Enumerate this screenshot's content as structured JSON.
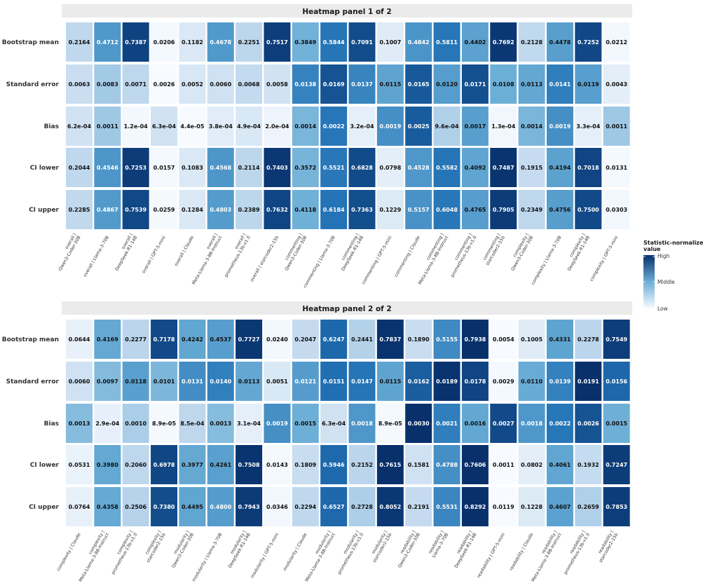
{
  "legend": {
    "title_line1": "Statistic-normalized",
    "title_line2": "value",
    "labels": [
      "High",
      "Middle",
      "Low"
    ],
    "colors": [
      "#08306b",
      "#6baed6",
      "#f7fbff"
    ]
  },
  "chart_data": [
    {
      "type": "heatmap",
      "title": "Heatmap panel 1 of 2",
      "rows": [
        "Bootstrap mean",
        "Standard error",
        "Bias",
        "CI lower",
        "CI upper"
      ],
      "columns": [
        "overall | Qwen3-Coder-30B",
        "overall | Llama-3-70B",
        "overall | DeepSeek-R1-14B",
        "overall | GPT-5-mini",
        "overall | Claude",
        "overall | Meta-Llama-3-8B-Instruct",
        "overall | prometheus-13b-v1.0",
        "overall | starcoder2-15b",
        "commenting | Qwen3-Coder-30B",
        "commenting | Llama-3-70B",
        "commenting | DeepSeek-R1-14B",
        "commenting | GPT-5-mini",
        "commenting | Claude",
        "commenting | Meta-Llama-3-8B-Instruct",
        "commenting | prometheus-13b-v1.0",
        "commenting | starcoder2-15b",
        "complexity | Qwen3-Coder-30B",
        "complexity | Llama-3-70B",
        "complexity | DeepSeek-R1-14B",
        "complexity | GPT-5-mini"
      ],
      "column_labels": [
        [
          "overall |",
          "Qwen3-Coder-30B"
        ],
        [
          "overall | Llama-3-70B"
        ],
        [
          "overall |",
          "DeepSeek-R1-14B"
        ],
        [
          "overall | GPT-5-mini"
        ],
        [
          "overall | Claude"
        ],
        [
          "overall |",
          "Meta-Llama-3-8B-Instruct"
        ],
        [
          "overall |",
          "prometheus-13b-v1.0"
        ],
        [
          "overall | starcoder2-15b"
        ],
        [
          "commenting |",
          "Qwen3-Coder-30B"
        ],
        [
          "commenting | Llama-3-70B"
        ],
        [
          "commenting |",
          "DeepSeek-R1-14B"
        ],
        [
          "commenting | GPT-5-mini"
        ],
        [
          "commenting | Claude"
        ],
        [
          "commenting |",
          "Meta-Llama-3-8B-Instruct"
        ],
        [
          "commenting |",
          "prometheus-13b-v1.0"
        ],
        [
          "commenting |",
          "starcoder2-15b"
        ],
        [
          "complexity |",
          "Qwen3-Coder-30B"
        ],
        [
          "complexity | Llama-3-70B"
        ],
        [
          "complexity |",
          "DeepSeek-R1-14B"
        ],
        [
          "complexity | GPT-5-mini"
        ]
      ],
      "values": [
        [
          "0.2164",
          "0.4712",
          "0.7387",
          "0.0206",
          "0.1182",
          "0.4678",
          "0.2251",
          "0.7517",
          "0.3849",
          "0.5844",
          "0.7091",
          "0.1007",
          "0.4842",
          "0.5811",
          "0.4402",
          "0.7692",
          "0.2128",
          "0.4478",
          "0.7252",
          "0.0212"
        ],
        [
          "0.0063",
          "0.0083",
          "0.0071",
          "0.0026",
          "0.0052",
          "0.0060",
          "0.0068",
          "0.0058",
          "0.0138",
          "0.0169",
          "0.0137",
          "0.0115",
          "0.0165",
          "0.0120",
          "0.0171",
          "0.0108",
          "0.0113",
          "0.0141",
          "0.0119",
          "0.0043"
        ],
        [
          "6.2e-04",
          "0.0011",
          "1.2e-04",
          "6.3e-04",
          "4.4e-05",
          "3.8e-04",
          "4.9e-04",
          "2.0e-04",
          "0.0014",
          "0.0022",
          "3.2e-04",
          "0.0019",
          "0.0025",
          "9.6e-04",
          "0.0017",
          "1.3e-04",
          "0.0014",
          "0.0019",
          "3.3e-04",
          "0.0011"
        ],
        [
          "0.2044",
          "0.4546",
          "0.7253",
          "0.0157",
          "0.1083",
          "0.4568",
          "0.2114",
          "0.7403",
          "0.3572",
          "0.5521",
          "0.6828",
          "0.0798",
          "0.4528",
          "0.5582",
          "0.4092",
          "0.7487",
          "0.1915",
          "0.4194",
          "0.7018",
          "0.0131"
        ],
        [
          "0.2285",
          "0.4867",
          "0.7539",
          "0.0259",
          "0.1284",
          "0.4803",
          "0.2389",
          "0.7632",
          "0.4118",
          "0.6184",
          "0.7363",
          "0.1229",
          "0.5157",
          "0.6048",
          "0.4765",
          "0.7905",
          "0.2349",
          "0.4756",
          "0.7500",
          "0.0303"
        ]
      ]
    },
    {
      "type": "heatmap",
      "title": "Heatmap panel 2 of 2",
      "rows": [
        "Bootstrap mean",
        "Standard error",
        "Bias",
        "CI lower",
        "CI upper"
      ],
      "columns": [
        "complexity | Claude",
        "complexity | Meta-Llama-3-8B-Instruct",
        "complexity | prometheus-13b-v1.0",
        "complexity | starcoder2-15b",
        "modularity | Qwen3-Coder-30B",
        "modularity | Llama-3-70B",
        "modularity | DeepSeek-R1-14B",
        "modularity | GPT-5-mini",
        "modularity | Claude",
        "modularity | Meta-Llama-3-8B-Instruct",
        "modularity | prometheus-13b-v1.0",
        "modularity | starcoder2-15b",
        "readability | Qwen3-Coder-30B",
        "readability | Llama-3-70B",
        "readability | DeepSeek-R1-14B",
        "readability | GPT-5-mini",
        "readability | Claude",
        "readability | Meta-Llama-3-8B-Instruct",
        "readability | prometheus-13b-v1.0",
        "readability | starcoder2-15b"
      ],
      "column_labels": [
        [
          "complexity | Claude"
        ],
        [
          "complexity |",
          "Meta-Llama-3-8B-Instruct"
        ],
        [
          "complexity |",
          "prometheus-13b-v1.0"
        ],
        [
          "complexity |",
          "starcoder2-15b"
        ],
        [
          "modularity |",
          "Qwen3-Coder-30B"
        ],
        [
          "modularity | Llama-3-70B"
        ],
        [
          "modularity |",
          "DeepSeek-R1-14B"
        ],
        [
          "modularity | GPT-5-mini"
        ],
        [
          "modularity | Claude"
        ],
        [
          "modularity |",
          "Meta-Llama-3-8B-Instruct"
        ],
        [
          "modularity |",
          "prometheus-13b-v1.0"
        ],
        [
          "modularity |",
          "starcoder2-15b"
        ],
        [
          "readability |",
          "Qwen3-Coder-30B"
        ],
        [
          "readability |",
          "Llama-3-70B"
        ],
        [
          "readability |",
          "DeepSeek-R1-14B"
        ],
        [
          "readability | GPT-5-mini"
        ],
        [
          "readability | Claude"
        ],
        [
          "readability |",
          "Meta-Llama-3-8B-Instruct"
        ],
        [
          "readability |",
          "prometheus-13b-v1.0"
        ],
        [
          "readability |",
          "starcoder2-15b"
        ]
      ],
      "values": [
        [
          "0.0644",
          "0.4169",
          "0.2277",
          "0.7178",
          "0.4242",
          "0.4537",
          "0.7727",
          "0.0240",
          "0.2047",
          "0.6247",
          "0.2441",
          "0.7837",
          "0.1890",
          "0.5155",
          "0.7938",
          "0.0054",
          "0.1005",
          "0.4331",
          "0.2278",
          "0.7549"
        ],
        [
          "0.0060",
          "0.0097",
          "0.0118",
          "0.0101",
          "0.0131",
          "0.0140",
          "0.0113",
          "0.0051",
          "0.0121",
          "0.0151",
          "0.0147",
          "0.0115",
          "0.0162",
          "0.0189",
          "0.0178",
          "0.0029",
          "0.0110",
          "0.0139",
          "0.0191",
          "0.0156"
        ],
        [
          "0.0013",
          "2.9e-04",
          "0.0010",
          "8.9e-05",
          "8.5e-04",
          "0.0013",
          "3.1e-04",
          "0.0019",
          "0.0015",
          "6.3e-04",
          "0.0018",
          "8.9e-05",
          "0.0030",
          "0.0021",
          "0.0016",
          "0.0027",
          "0.0018",
          "0.0022",
          "0.0026",
          "0.0015"
        ],
        [
          "0.0531",
          "0.3980",
          "0.2060",
          "0.6978",
          "0.3977",
          "0.4261",
          "0.7508",
          "0.0143",
          "0.1809",
          "0.5946",
          "0.2152",
          "0.7615",
          "0.1581",
          "0.4788",
          "0.7606",
          "0.0011",
          "0.0802",
          "0.4061",
          "0.1932",
          "0.7247"
        ],
        [
          "0.0764",
          "0.4358",
          "0.2506",
          "0.7380",
          "0.4495",
          "0.4800",
          "0.7943",
          "0.0346",
          "0.2294",
          "0.6527",
          "0.2728",
          "0.8052",
          "0.2191",
          "0.5531",
          "0.8292",
          "0.0119",
          "0.1228",
          "0.4607",
          "0.2659",
          "0.7853"
        ]
      ]
    }
  ]
}
